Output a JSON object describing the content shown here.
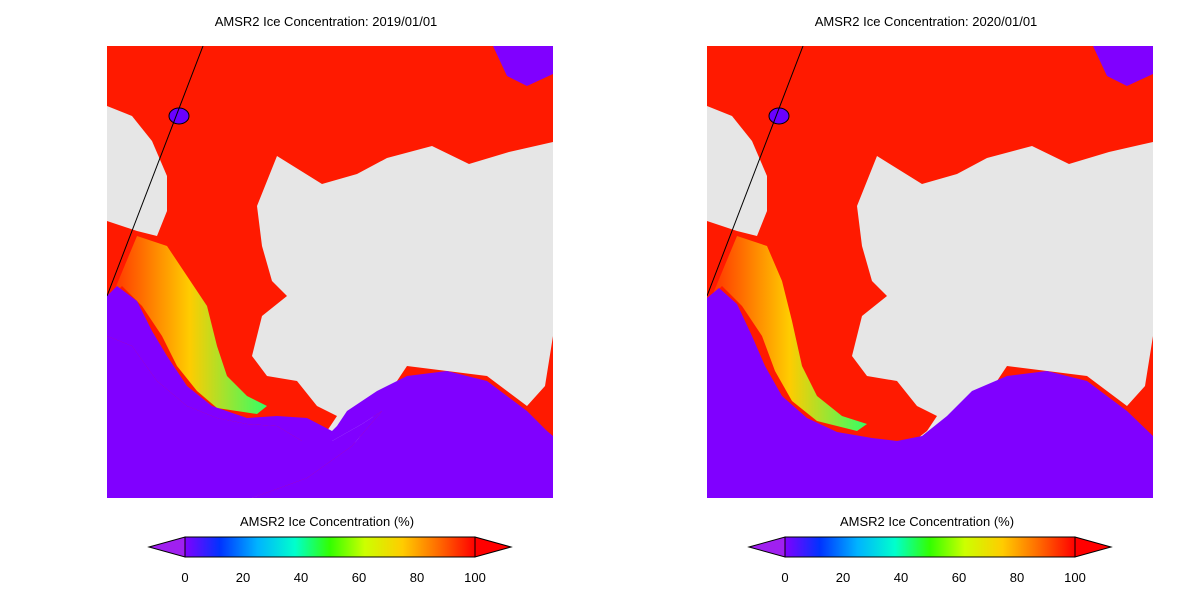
{
  "panels": [
    {
      "title": "AMSR2 Ice Concentration: 2019/01/01",
      "colorbar_label": "AMSR2 Ice Concentration (%)",
      "ticks": [
        "0",
        "20",
        "40",
        "60",
        "80",
        "100"
      ]
    },
    {
      "title": "AMSR2 Ice Concentration: 2020/01/01",
      "colorbar_label": "AMSR2 Ice Concentration (%)",
      "ticks": [
        "0",
        "20",
        "40",
        "60",
        "80",
        "100"
      ]
    }
  ],
  "colors": {
    "ice_100": "#ff1a00",
    "open_water": "#8000ff",
    "land": "#e6e6e6",
    "coastline": "#000000"
  },
  "colorbar_stops": [
    "#8000ff",
    "#0033ff",
    "#00b3ff",
    "#00ffcc",
    "#33ff00",
    "#ccff00",
    "#ffcc00",
    "#ff6600",
    "#ff0000"
  ]
}
